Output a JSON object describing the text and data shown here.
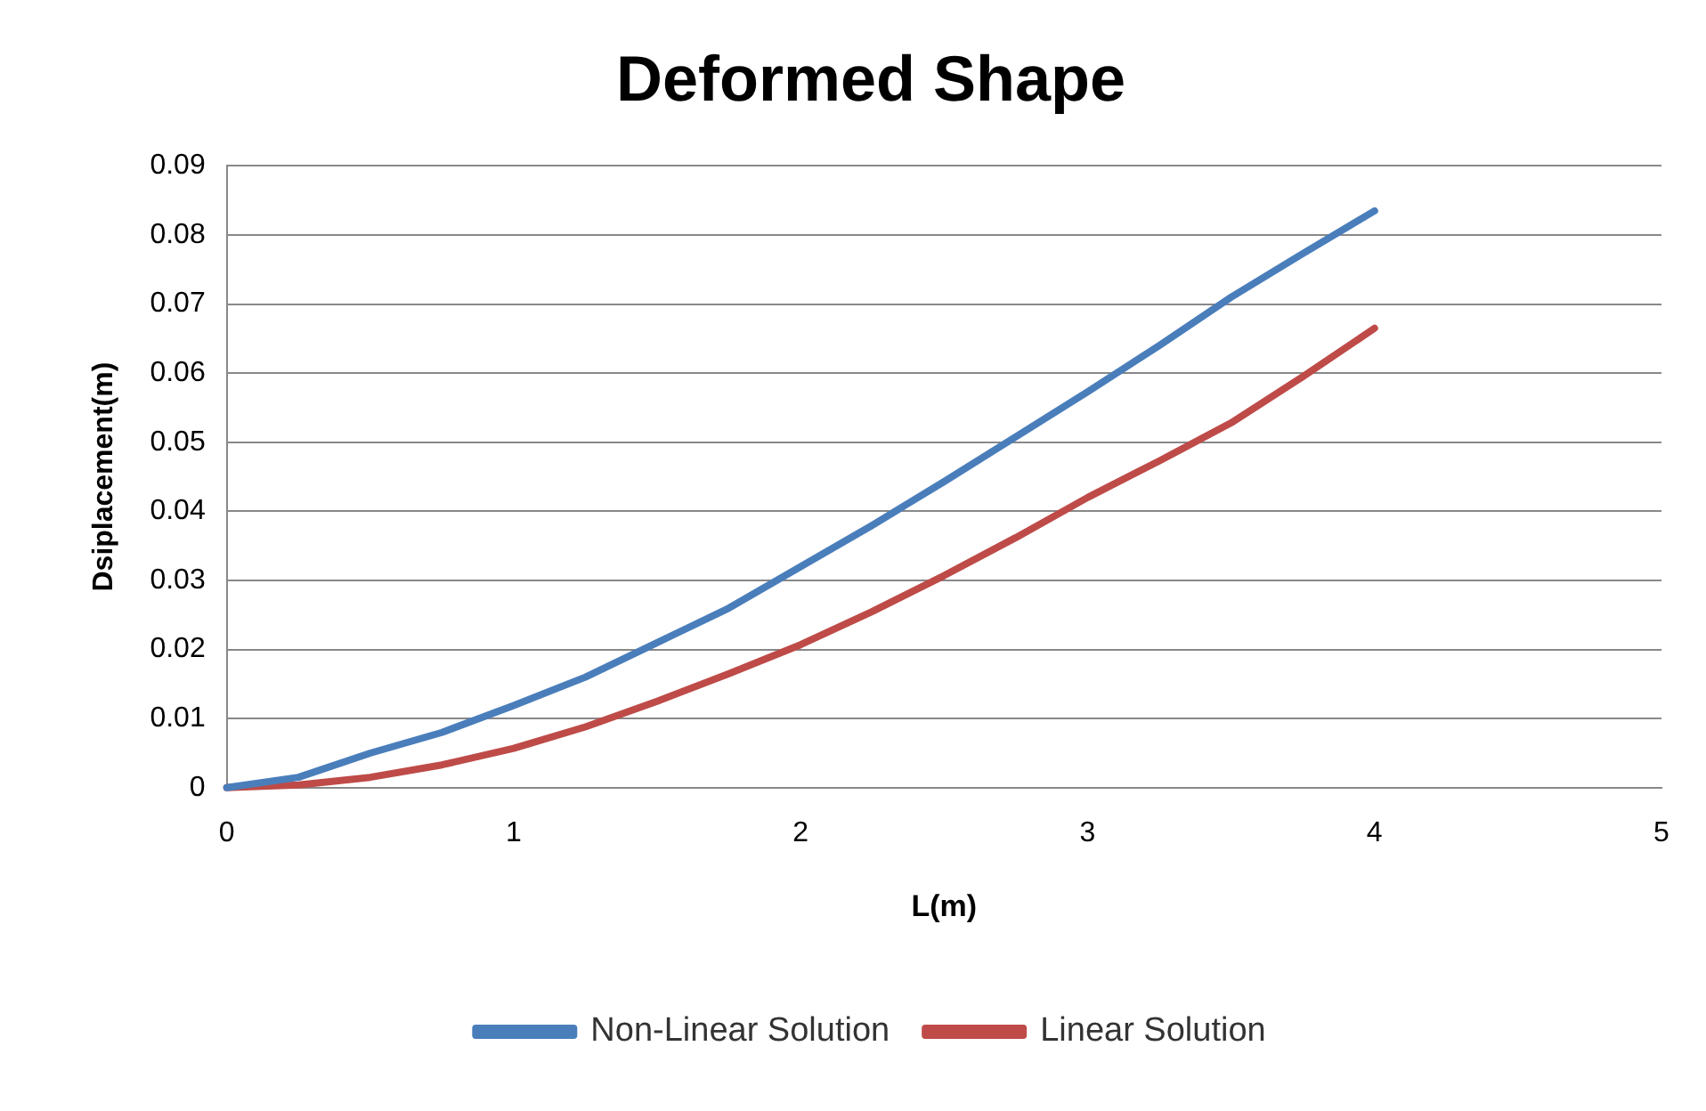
{
  "chart_data": {
    "type": "line",
    "title": "Deformed Shape",
    "xlabel": "L(m)",
    "ylabel": "Dsiplacement(m)",
    "xlim": [
      0,
      5
    ],
    "xticks": [
      0,
      1,
      2,
      3,
      4,
      5
    ],
    "ylim": [
      0,
      0.09
    ],
    "yticks": [
      0,
      0.01,
      0.02,
      0.03,
      0.04,
      0.05,
      0.06,
      0.07,
      0.08,
      0.09
    ],
    "grid": "y",
    "legend": "bottom",
    "marker": "none",
    "line_style": "solid",
    "series": [
      {
        "name": "Non-Linear Solution",
        "color": "#4a7ebb",
        "x": [
          0,
          0.25,
          0.5,
          0.75,
          1,
          1.25,
          1.5,
          1.75,
          2,
          2.25,
          2.5,
          2.75,
          3,
          3.25,
          3.5,
          3.75,
          4
        ],
        "values": [
          0,
          0.0015,
          0.005,
          0.008,
          0.0119,
          0.016,
          0.021,
          0.026,
          0.032,
          0.038,
          0.0443,
          0.0508,
          0.0573,
          0.064,
          0.071,
          0.0773,
          0.0835
        ]
      },
      {
        "name": "Linear Solution",
        "color": "#be4b48",
        "x": [
          0,
          0.25,
          0.5,
          0.75,
          1,
          1.25,
          1.5,
          1.75,
          2,
          2.25,
          2.5,
          2.75,
          3,
          3.25,
          3.5,
          3.75,
          4
        ],
        "values": [
          0,
          0.0004,
          0.0015,
          0.0033,
          0.0057,
          0.0088,
          0.0125,
          0.0165,
          0.0207,
          0.0255,
          0.0307,
          0.0362,
          0.042,
          0.0473,
          0.0528,
          0.0595,
          0.0665
        ]
      }
    ]
  }
}
